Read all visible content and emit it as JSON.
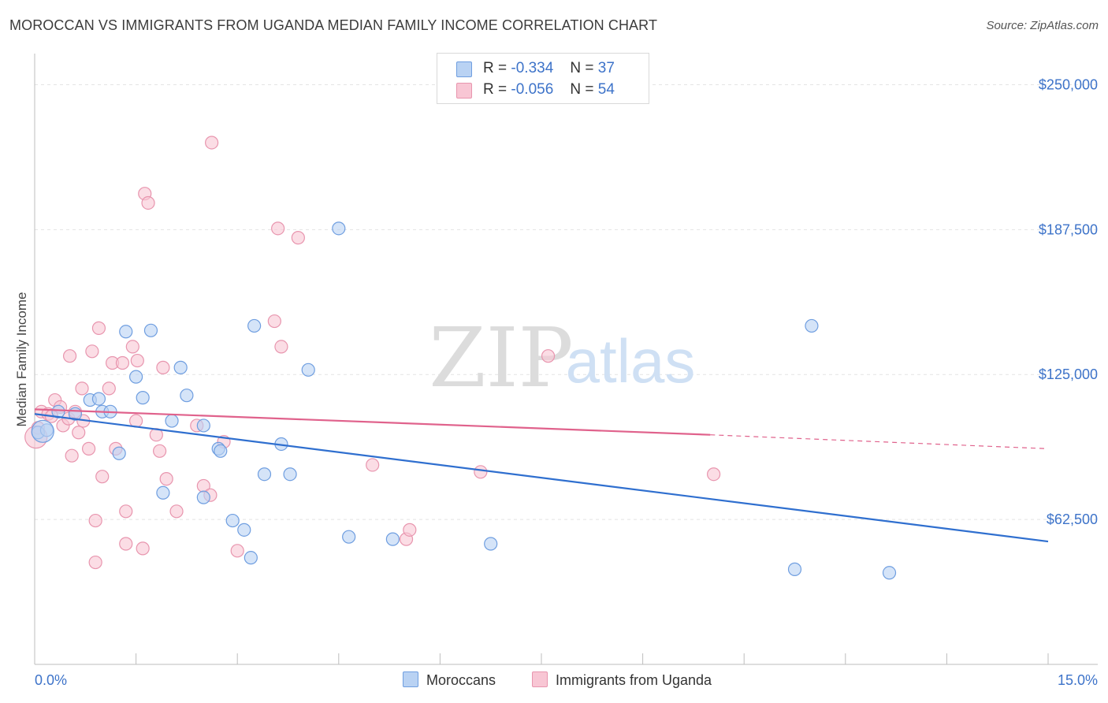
{
  "header": {
    "title": "MOROCCAN VS IMMIGRANTS FROM UGANDA MEDIAN FAMILY INCOME CORRELATION CHART",
    "source": "Source: ZipAtlas.com"
  },
  "watermark": {
    "zip": "ZIP",
    "atlas": "atlas"
  },
  "legend_top": [
    {
      "r_label": "R =",
      "r_value": "-0.334",
      "n_label": "N =",
      "n_value": "37"
    },
    {
      "r_label": "R =",
      "r_value": "-0.056",
      "n_label": "N =",
      "n_value": "54"
    }
  ],
  "legend_bottom": [
    {
      "label": "Moroccans"
    },
    {
      "label": "Immigrants from Uganda"
    }
  ],
  "colors": {
    "moroccans_fill": "#b9d2f3",
    "moroccans_stroke": "#6f9ee0",
    "moroccans_line": "#2f6fcf",
    "uganda_fill": "#f8c6d4",
    "uganda_stroke": "#e895ae",
    "uganda_line": "#e0628c",
    "tick_label": "#3d73c9"
  },
  "chart_data": {
    "type": "scatter",
    "title": "MOROCCAN VS IMMIGRANTS FROM UGANDA MEDIAN FAMILY INCOME CORRELATION CHART",
    "xlabel": "",
    "ylabel": "Median Family Income",
    "xlim": [
      0,
      15
    ],
    "ylim": [
      0,
      260000
    ],
    "x_tick_labels": [
      "0.0%",
      "15.0%"
    ],
    "y_ticks": [
      62500,
      125000,
      187500,
      250000
    ],
    "y_tick_labels": [
      "$62,500",
      "$125,000",
      "$187,500",
      "$250,000"
    ],
    "grid": true,
    "legend_position": "top-center",
    "series": [
      {
        "name": "Moroccans",
        "r": -0.334,
        "n": 37,
        "trend": {
          "x": [
            0,
            15
          ],
          "y": [
            108000,
            53000
          ],
          "dashed_from": null
        },
        "points": [
          [
            0.05,
            100000
          ],
          [
            0.18,
            101000
          ],
          [
            0.35,
            109000
          ],
          [
            0.6,
            108000
          ],
          [
            0.82,
            114000
          ],
          [
            1.0,
            109000
          ],
          [
            0.95,
            114500
          ],
          [
            1.12,
            109000
          ],
          [
            1.25,
            91000
          ],
          [
            1.35,
            143500
          ],
          [
            1.5,
            124000
          ],
          [
            1.6,
            115000
          ],
          [
            1.72,
            144000
          ],
          [
            1.9,
            74000
          ],
          [
            2.03,
            105000
          ],
          [
            2.16,
            128000
          ],
          [
            2.25,
            116000
          ],
          [
            2.5,
            103000
          ],
          [
            2.5,
            72000
          ],
          [
            2.72,
            93000
          ],
          [
            2.75,
            92000
          ],
          [
            2.93,
            62000
          ],
          [
            3.1,
            58000
          ],
          [
            3.2,
            46000
          ],
          [
            3.25,
            146000
          ],
          [
            3.4,
            82000
          ],
          [
            3.65,
            95000
          ],
          [
            3.78,
            82000
          ],
          [
            4.05,
            127000
          ],
          [
            4.5,
            188000
          ],
          [
            4.65,
            55000
          ],
          [
            5.3,
            54000
          ],
          [
            6.75,
            52000
          ],
          [
            11.5,
            146000
          ],
          [
            11.25,
            41000
          ],
          [
            12.65,
            39500
          ],
          [
            0.12,
            100500
          ]
        ]
      },
      {
        "name": "Immigrants from Uganda",
        "r": -0.056,
        "n": 54,
        "trend": {
          "x": [
            0,
            10
          ],
          "y": [
            110000,
            99000
          ],
          "dashed_to": [
            15,
            93000
          ]
        },
        "points": [
          [
            0.05,
            102000
          ],
          [
            0.1,
            109000
          ],
          [
            0.2,
            108000
          ],
          [
            0.25,
            107000
          ],
          [
            0.3,
            114000
          ],
          [
            0.38,
            111000
          ],
          [
            0.42,
            103000
          ],
          [
            0.5,
            106000
          ],
          [
            0.52,
            133000
          ],
          [
            0.6,
            109000
          ],
          [
            0.55,
            90000
          ],
          [
            0.65,
            100000
          ],
          [
            0.7,
            119000
          ],
          [
            0.72,
            105000
          ],
          [
            0.8,
            93000
          ],
          [
            0.85,
            135000
          ],
          [
            0.9,
            62000
          ],
          [
            0.9,
            44000
          ],
          [
            0.95,
            145000
          ],
          [
            1.0,
            81000
          ],
          [
            1.1,
            119000
          ],
          [
            1.15,
            130000
          ],
          [
            1.2,
            93000
          ],
          [
            1.3,
            130000
          ],
          [
            1.35,
            66000
          ],
          [
            1.35,
            52000
          ],
          [
            1.45,
            137000
          ],
          [
            1.5,
            105000
          ],
          [
            1.52,
            131000
          ],
          [
            1.6,
            50000
          ],
          [
            1.63,
            203000
          ],
          [
            1.68,
            199000
          ],
          [
            1.8,
            99000
          ],
          [
            1.85,
            92000
          ],
          [
            1.9,
            128000
          ],
          [
            1.95,
            80000
          ],
          [
            2.1,
            66000
          ],
          [
            2.4,
            103000
          ],
          [
            2.5,
            77000
          ],
          [
            2.6,
            73000
          ],
          [
            2.62,
            225000
          ],
          [
            2.8,
            96000
          ],
          [
            3.0,
            49000
          ],
          [
            3.55,
            148000
          ],
          [
            3.6,
            188000
          ],
          [
            3.65,
            137000
          ],
          [
            3.9,
            184000
          ],
          [
            5.0,
            86000
          ],
          [
            5.5,
            54000
          ],
          [
            5.55,
            58000
          ],
          [
            6.6,
            83000
          ],
          [
            7.6,
            133000
          ],
          [
            10.05,
            82000
          ],
          [
            0.02,
            98000
          ]
        ]
      }
    ]
  }
}
